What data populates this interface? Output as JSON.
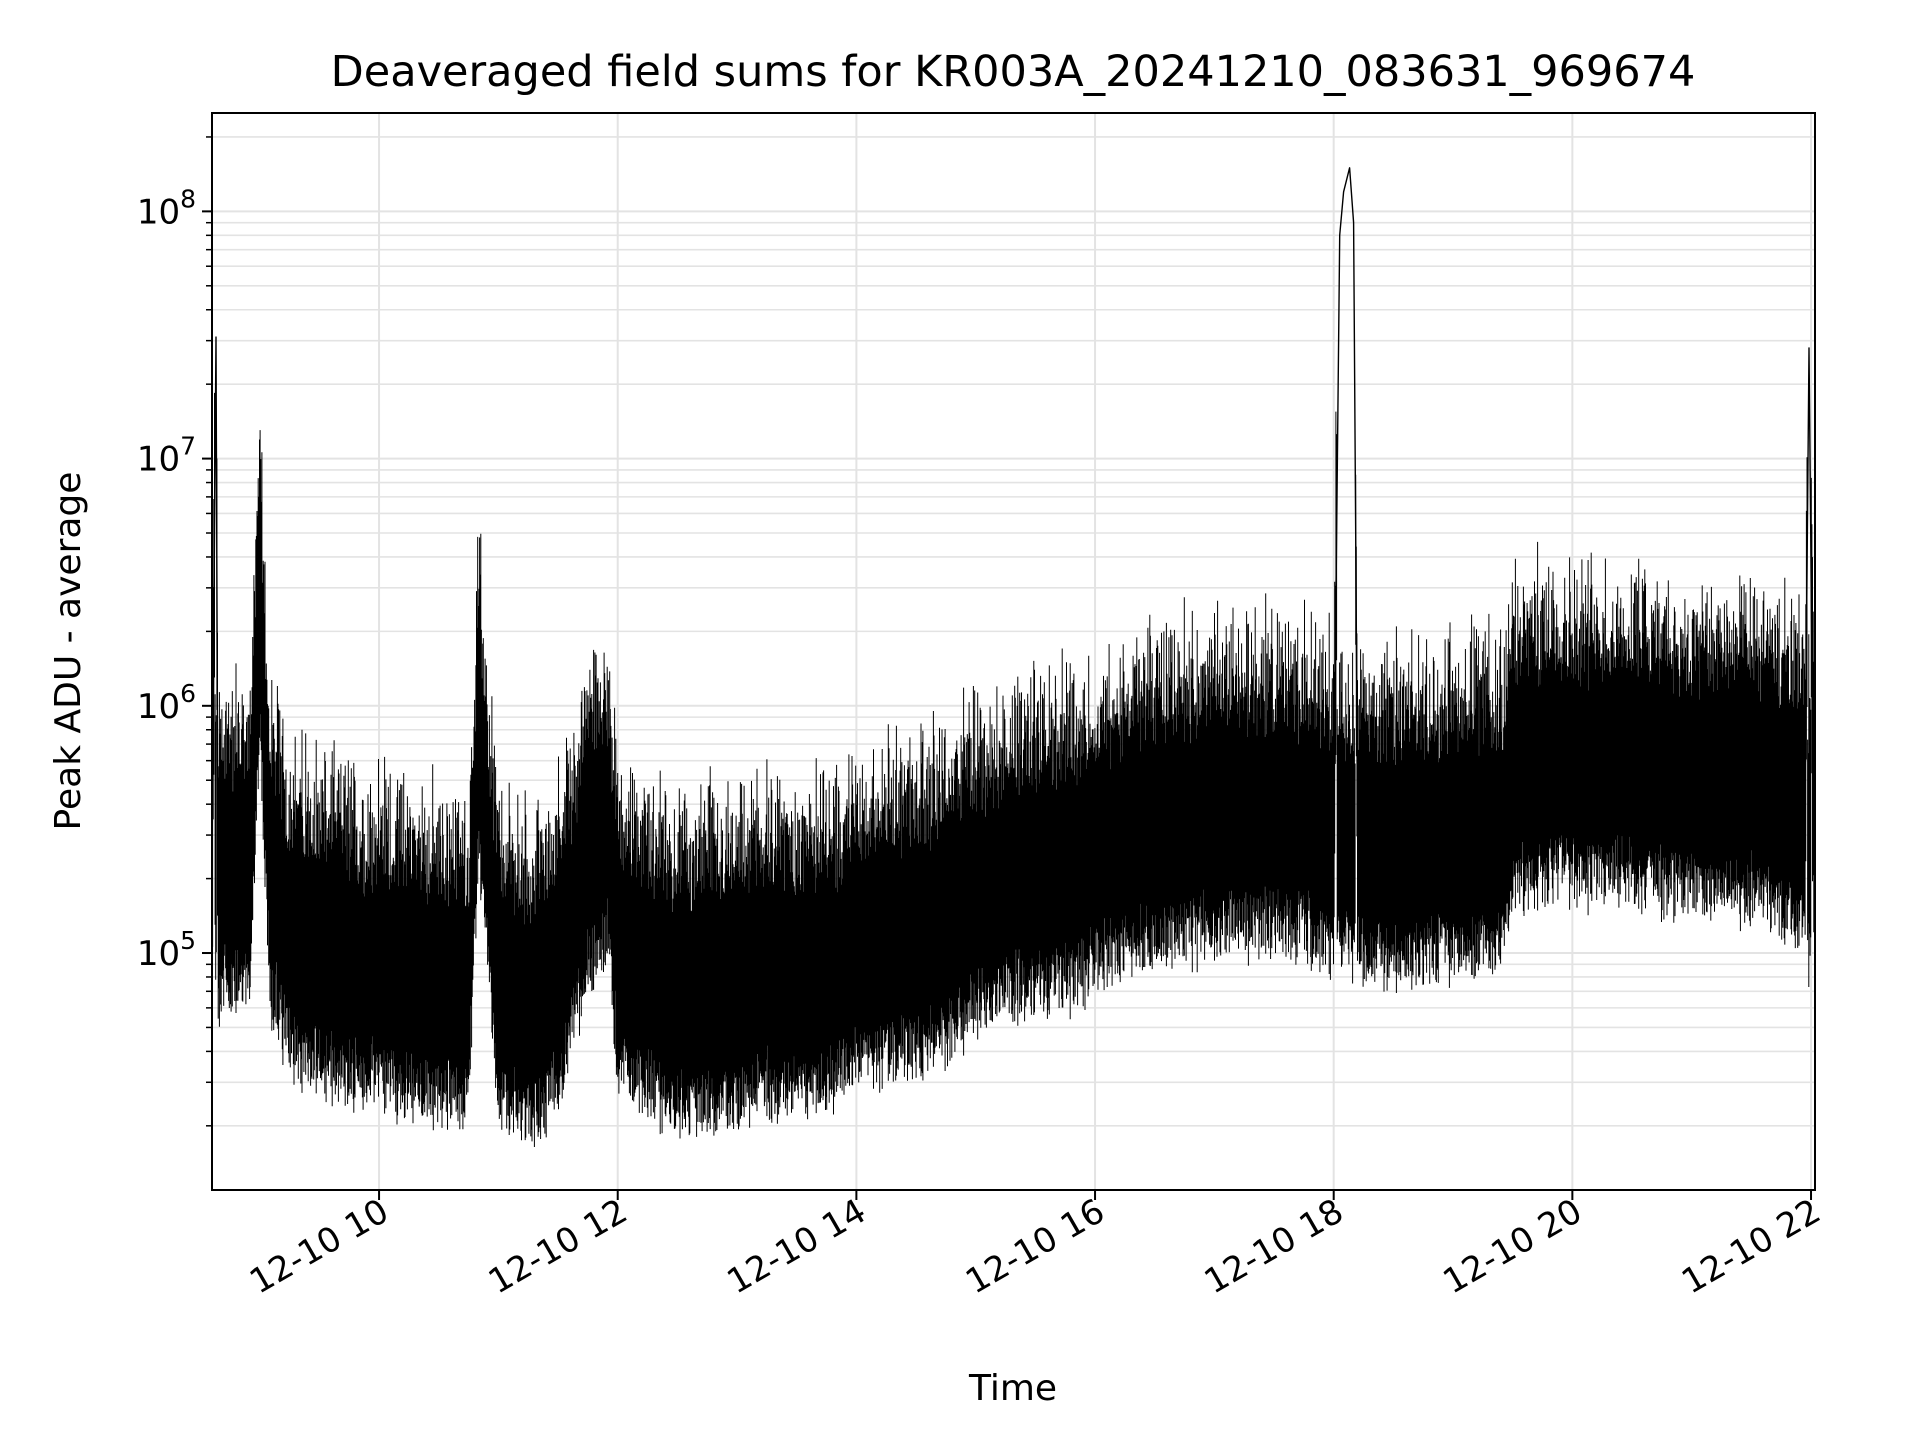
{
  "chart_data": {
    "type": "line",
    "title": "Deaveraged field sums for KR003A_20241210_083631_969674",
    "xlabel": "Time",
    "ylabel": "Peak ADU - average",
    "y_scale": "log",
    "grid": true,
    "x_ticks": [
      "12-10 10",
      "12-10 12",
      "12-10 14",
      "12-10 16",
      "12-10 18",
      "12-10 20",
      "12-10 22"
    ],
    "y_ticks": [
      {
        "base": "10",
        "exp": "5"
      },
      {
        "base": "10",
        "exp": "6"
      },
      {
        "base": "10",
        "exp": "7"
      },
      {
        "base": "10",
        "exp": "8"
      }
    ],
    "xlim": [
      "2024-12-10 08:36",
      "2024-12-10 22:02"
    ],
    "ylim": [
      11000,
      250000000
    ],
    "line_color": "#000000",
    "series": [
      {
        "x": [
          "2024-12-10 08:36",
          "2024-12-10 08:38",
          "2024-12-10 08:39",
          "2024-12-10 08:41",
          "2024-12-10 08:45",
          "2024-12-10 08:50",
          "2024-12-10 08:55",
          "2024-12-10 09:00",
          "2024-12-10 09:05",
          "2024-12-10 09:10",
          "2024-12-10 09:12",
          "2024-12-10 09:15",
          "2024-12-10 09:20",
          "2024-12-10 09:30",
          "2024-12-10 09:40",
          "2024-12-10 09:50",
          "2024-12-10 10:00",
          "2024-12-10 10:15",
          "2024-12-10 10:30",
          "2024-12-10 10:45",
          "2024-12-10 10:50",
          "2024-12-10 11:00",
          "2024-12-10 11:10",
          "2024-12-10 11:15",
          "2024-12-10 11:30",
          "2024-12-10 11:45",
          "2024-12-10 11:55",
          "2024-12-10 12:00",
          "2024-12-10 12:15",
          "2024-12-10 12:30",
          "2024-12-10 12:45",
          "2024-12-10 13:00",
          "2024-12-10 13:15",
          "2024-12-10 13:30",
          "2024-12-10 13:45",
          "2024-12-10 14:00",
          "2024-12-10 14:15",
          "2024-12-10 14:30",
          "2024-12-10 14:45",
          "2024-12-10 15:00",
          "2024-12-10 15:15",
          "2024-12-10 15:30",
          "2024-12-10 15:45",
          "2024-12-10 16:00",
          "2024-12-10 16:15",
          "2024-12-10 16:30",
          "2024-12-10 16:45",
          "2024-12-10 17:00",
          "2024-12-10 17:15",
          "2024-12-10 17:30",
          "2024-12-10 17:45",
          "2024-12-10 18:00",
          "2024-12-10 18:03",
          "2024-12-10 18:05",
          "2024-12-10 18:08",
          "2024-12-10 18:10",
          "2024-12-10 18:12",
          "2024-12-10 18:15",
          "2024-12-10 18:30",
          "2024-12-10 18:45",
          "2024-12-10 19:00",
          "2024-12-10 19:15",
          "2024-12-10 19:25",
          "2024-12-10 19:30",
          "2024-12-10 19:45",
          "2024-12-10 20:00",
          "2024-12-10 20:15",
          "2024-12-10 20:30",
          "2024-12-10 20:45",
          "2024-12-10 21:00",
          "2024-12-10 21:15",
          "2024-12-10 21:30",
          "2024-12-10 21:40",
          "2024-12-10 21:50",
          "2024-12-10 21:57",
          "2024-12-10 21:59",
          "2024-12-10 22:01",
          "2024-12-10 22:02"
        ],
        "y": [
          230000,
          31000000,
          200000,
          260000,
          260000,
          240000,
          250000,
          3200000,
          240000,
          200000,
          160000,
          140000,
          130000,
          120000,
          115000,
          100000,
          105000,
          95000,
          90000,
          85000,
          1000000,
          90000,
          75000,
          70000,
          100000,
          300000,
          400000,
          120000,
          95000,
          80000,
          85000,
          90000,
          100000,
          95000,
          100000,
          120000,
          130000,
          140000,
          160000,
          200000,
          230000,
          250000,
          260000,
          300000,
          350000,
          380000,
          400000,
          420000,
          430000,
          440000,
          420000,
          350000,
          80000000,
          120000000,
          150000000,
          90000000,
          350000,
          330000,
          320000,
          330000,
          350000,
          380000,
          350000,
          650000,
          700000,
          700000,
          680000,
          680000,
          650000,
          620000,
          600000,
          600000,
          550000,
          500000,
          450000,
          28000000,
          500000,
          600000
        ]
      }
    ]
  }
}
